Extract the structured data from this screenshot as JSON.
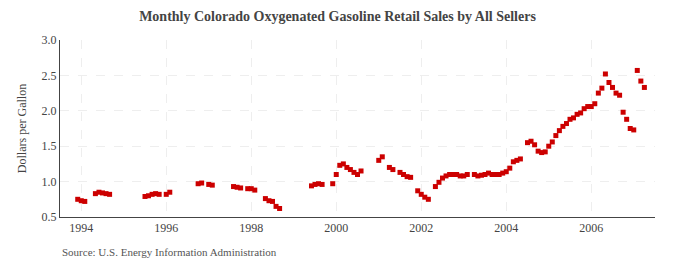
{
  "chart_data": {
    "type": "scatter",
    "title": "Monthly Colorado Oxygenated Gasoline Retail Sales by All Sellers",
    "y_label": "Dollars per Gallon",
    "annotations": [
      "Source: U.S. Energy Information Administration"
    ],
    "color": "#cc0000",
    "marker": "square",
    "grid": true,
    "xlim": [
      1993.5,
      2007.5
    ],
    "ylim": [
      0.5,
      3.0
    ],
    "xticks": [
      1994,
      1996,
      1998,
      2000,
      2002,
      2004,
      2006
    ],
    "yticks": [
      0.5,
      {
        "value": 1.0,
        "label": "1.0"
      },
      1.5,
      {
        "value": 2.0,
        "label": "2.0"
      },
      2.5,
      {
        "value": 3.0,
        "label": "3.0"
      }
    ],
    "x": [
      1993.917,
      1994.0,
      1994.083,
      1994.333,
      1994.417,
      1994.5,
      1994.583,
      1994.667,
      1995.5,
      1995.583,
      1995.667,
      1995.75,
      1995.833,
      1996.0,
      1996.083,
      1996.75,
      1996.833,
      1997.0,
      1997.083,
      1997.583,
      1997.667,
      1997.75,
      1997.917,
      1998.0,
      1998.083,
      1998.333,
      1998.417,
      1998.5,
      1998.583,
      1998.667,
      1999.417,
      1999.5,
      1999.583,
      1999.667,
      1999.917,
      2000.0,
      2000.083,
      2000.167,
      2000.25,
      2000.333,
      2000.417,
      2000.5,
      2000.583,
      2001.0,
      2001.083,
      2001.25,
      2001.333,
      2001.5,
      2001.583,
      2001.667,
      2001.75,
      2001.917,
      2002.0,
      2002.083,
      2002.167,
      2002.333,
      2002.417,
      2002.5,
      2002.583,
      2002.667,
      2002.75,
      2002.833,
      2002.917,
      2003.0,
      2003.083,
      2003.25,
      2003.333,
      2003.417,
      2003.5,
      2003.583,
      2003.667,
      2003.75,
      2003.833,
      2003.917,
      2004.0,
      2004.083,
      2004.167,
      2004.25,
      2004.333,
      2004.5,
      2004.583,
      2004.667,
      2004.75,
      2004.833,
      2004.917,
      2005.0,
      2005.083,
      2005.167,
      2005.25,
      2005.333,
      2005.417,
      2005.5,
      2005.583,
      2005.667,
      2005.75,
      2005.833,
      2005.917,
      2006.0,
      2006.083,
      2006.167,
      2006.25,
      2006.333,
      2006.417,
      2006.5,
      2006.583,
      2006.667,
      2006.75,
      2006.833,
      2006.917,
      2007.0,
      2007.083,
      2007.167,
      2007.25
    ],
    "values": [
      0.75,
      0.73,
      0.72,
      0.83,
      0.85,
      0.84,
      0.83,
      0.82,
      0.79,
      0.8,
      0.82,
      0.83,
      0.82,
      0.82,
      0.85,
      0.97,
      0.98,
      0.96,
      0.95,
      0.93,
      0.92,
      0.91,
      0.9,
      0.9,
      0.88,
      0.76,
      0.73,
      0.72,
      0.65,
      0.62,
      0.94,
      0.96,
      0.97,
      0.96,
      0.97,
      1.1,
      1.23,
      1.25,
      1.2,
      1.17,
      1.13,
      1.1,
      1.15,
      1.3,
      1.35,
      1.2,
      1.17,
      1.13,
      1.1,
      1.07,
      1.06,
      0.87,
      0.82,
      0.78,
      0.75,
      0.93,
      0.99,
      1.05,
      1.08,
      1.1,
      1.1,
      1.1,
      1.08,
      1.08,
      1.1,
      1.1,
      1.08,
      1.09,
      1.1,
      1.12,
      1.1,
      1.1,
      1.1,
      1.12,
      1.14,
      1.19,
      1.28,
      1.3,
      1.32,
      1.55,
      1.57,
      1.52,
      1.43,
      1.41,
      1.42,
      1.5,
      1.56,
      1.65,
      1.72,
      1.78,
      1.82,
      1.88,
      1.9,
      1.95,
      1.97,
      2.03,
      2.06,
      2.06,
      2.1,
      2.25,
      2.32,
      2.52,
      2.4,
      2.33,
      2.25,
      2.22,
      1.98,
      1.88,
      1.75,
      1.73,
      2.57,
      2.42,
      2.33
    ]
  }
}
